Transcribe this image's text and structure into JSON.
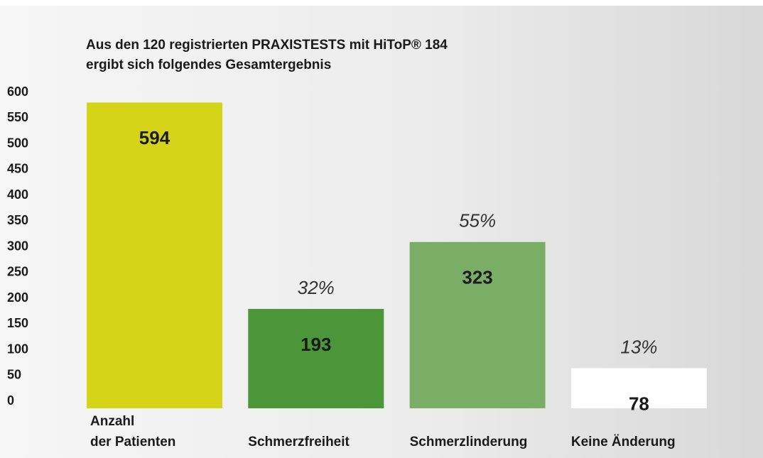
{
  "chart_data": {
    "type": "bar",
    "title": "Aus den 120 registrierten PRAXISTESTS mit HiToP® 184\nergibt sich folgendes Gesamtergebnis",
    "categories": [
      "Anzahl\nder Patienten",
      "Schmerzfreiheit",
      "Schmerzlinderung",
      "Keine Änderung"
    ],
    "values": [
      594,
      193,
      323,
      78
    ],
    "share_labels": [
      null,
      "32%",
      "55%",
      "13%"
    ],
    "colors": [
      "#d6d419",
      "#4a9638",
      "#7aae67",
      "#ffffff"
    ],
    "ylim": [
      0,
      600
    ],
    "yticks": [
      0,
      50,
      100,
      150,
      200,
      250,
      300,
      350,
      400,
      450,
      500,
      550,
      600
    ],
    "grid": false
  }
}
